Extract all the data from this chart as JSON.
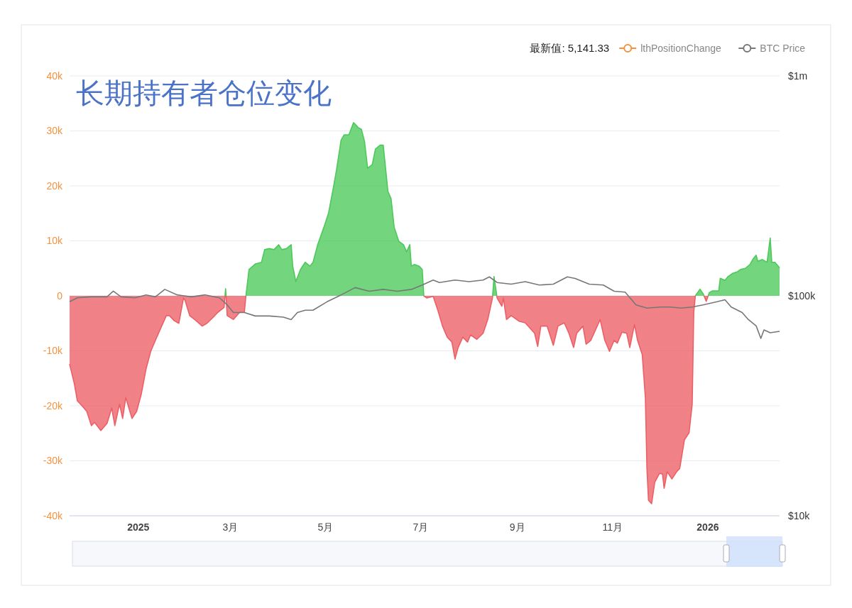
{
  "chart_data": {
    "type": "area",
    "title": "长期持有者仓位变化",
    "annotations": [
      "最新值: 5,141.33"
    ],
    "xlim": [
      "2024-11-18",
      "2026-02-16"
    ],
    "xticks": [
      {
        "value": "2025-01-01",
        "label": "2025"
      },
      {
        "value": "2025-03-01",
        "label": "3月"
      },
      {
        "value": "2025-05-01",
        "label": "5月"
      },
      {
        "value": "2025-07-01",
        "label": "7月"
      },
      {
        "value": "2025-09-01",
        "label": "9月"
      },
      {
        "value": "2025-11-01",
        "label": "11月"
      },
      {
        "value": "2026-01-01",
        "label": "2026"
      }
    ],
    "ylim": [
      -40000,
      40000
    ],
    "yticks": [
      {
        "value": -40000,
        "label": "-40k"
      },
      {
        "value": -30000,
        "label": "-30k"
      },
      {
        "value": -20000,
        "label": "-20k"
      },
      {
        "value": -10000,
        "label": "-10k"
      },
      0,
      {
        "value": 10000,
        "label": "10k"
      },
      {
        "value": 20000,
        "label": "20k"
      },
      {
        "value": 30000,
        "label": "30k"
      },
      {
        "value": 40000,
        "label": "40k"
      }
    ],
    "y2lim": [
      10000,
      1000000
    ],
    "y2ticks": [
      {
        "value": 10000,
        "label": "$10k"
      },
      {
        "value": 100000,
        "label": "$100k"
      },
      {
        "value": 1000000,
        "label": "$1m"
      }
    ],
    "log": "y2",
    "grid": "y",
    "legend": "top right",
    "series": [
      {
        "name": "lthPositionChange",
        "colors": [
          "#ec5f66",
          "#ec5f66",
          "#ec5f66",
          "#ec5f66",
          "#ec5f66",
          "#ec5f66",
          "#ec5f66",
          "#ec5f66",
          "#ec5f66",
          "#ec5f66",
          "#ec5f66",
          "#ec5f66",
          "#ec5f66",
          "#ec5f66",
          "#ec5f66",
          "#ec5f66",
          "#ec5f66",
          "#ec5f66",
          "#ec5f66",
          "#ec5f66",
          "#ec5f66",
          "#ec5f66",
          "#ec5f66",
          "#ec5f66",
          "#ec5f66",
          "#ec5f66",
          "#ec5f66",
          "#ec5f66",
          "#ec5f66",
          "#ec5f66",
          "#ec5f66",
          "#ec5f66",
          "#ec5f66",
          "#ec5f66",
          "#4cc95a",
          "#ec5f66",
          "#ec5f66",
          "#ec5f66",
          "#ec5f66",
          "#4cc95a",
          "#4cc95a",
          "#4cc95a",
          "#4cc95a",
          "#4cc95a",
          "#4cc95a",
          "#4cc95a",
          "#4cc95a",
          "#4cc95a",
          "#4cc95a",
          "#4cc95a",
          "#4cc95a",
          "#4cc95a",
          "#4cc95a",
          "#4cc95a",
          "#4cc95a",
          "#4cc95a",
          "#4cc95a",
          "#4cc95a",
          "#4cc95a",
          "#4cc95a",
          "#4cc95a",
          "#4cc95a",
          "#4cc95a",
          "#4cc95a",
          "#4cc95a",
          "#4cc95a",
          "#4cc95a",
          "#4cc95a",
          "#4cc95a",
          "#4cc95a",
          "#4cc95a",
          "#4cc95a",
          "#4cc95a",
          "#4cc95a",
          "#4cc95a",
          "#4cc95a",
          "#4cc95a",
          "#4cc95a",
          "#4cc95a",
          "#4cc95a",
          "#4cc95a",
          "#4cc95a",
          "#4cc95a",
          "#4cc95a",
          "#4cc95a",
          "#ec5f66",
          "#ec5f66",
          "#ec5f66",
          "#ec5f66",
          "#ec5f66",
          "#ec5f66",
          "#ec5f66",
          "#ec5f66",
          "#ec5f66",
          "#ec5f66",
          "#ec5f66",
          "#ec5f66",
          "#ec5f66",
          "#ec5f66",
          "#ec5f66",
          "#4cc95a",
          "#ec5f66",
          "#ec5f66",
          "#ec5f66",
          "#ec5f66",
          "#ec5f66",
          "#ec5f66",
          "#ec5f66",
          "#ec5f66",
          "#ec5f66",
          "#ec5f66",
          "#ec5f66",
          "#ec5f66",
          "#ec5f66",
          "#ec5f66",
          "#ec5f66",
          "#ec5f66",
          "#ec5f66",
          "#ec5f66",
          "#ec5f66",
          "#ec5f66",
          "#ec5f66",
          "#ec5f66",
          "#ec5f66",
          "#ec5f66",
          "#ec5f66",
          "#ec5f66",
          "#ec5f66",
          "#ec5f66",
          "#ec5f66",
          "#ec5f66",
          "#ec5f66",
          "#ec5f66",
          "#ec5f66",
          "#ec5f66",
          "#ec5f66",
          "#ec5f66",
          "#ec5f66",
          "#ec5f66",
          "#ec5f66",
          "#ec5f66",
          "#ec5f66",
          "#ec5f66",
          "#ec5f66",
          "#ec5f66",
          "#ec5f66",
          "#ec5f66",
          "#ec5f66",
          "#ec5f66",
          "#4cc95a",
          "#4cc95a",
          "#4cc95a",
          "#ec5f66",
          "#4cc95a",
          "#4cc95a",
          "#4cc95a",
          "#4cc95a",
          "#4cc95a",
          "#4cc95a",
          "#4cc95a",
          "#4cc95a",
          "#4cc95a",
          "#4cc95a",
          "#4cc95a",
          "#4cc95a",
          "#4cc95a",
          "#4cc95a",
          "#4cc95a",
          "#4cc95a",
          "#4cc95a",
          "#4cc95a",
          "#4cc95a",
          "#4cc95a"
        ],
        "x": [
          "2024-11-18",
          "2024-11-21",
          "2024-11-23",
          "2024-11-26",
          "2024-11-29",
          "2024-12-02",
          "2024-12-04",
          "2024-12-08",
          "2024-12-12",
          "2024-12-15",
          "2024-12-17",
          "2024-12-20",
          "2024-12-22",
          "2024-12-24",
          "2024-12-28",
          "2024-12-31",
          "2025-01-03",
          "2025-01-06",
          "2025-01-09",
          "2025-01-12",
          "2025-01-16",
          "2025-01-19",
          "2025-01-21",
          "2025-01-24",
          "2025-01-27",
          "2025-01-30",
          "2025-01-31",
          "2025-02-03",
          "2025-02-07",
          "2025-02-11",
          "2025-02-14",
          "2025-02-18",
          "2025-02-21",
          "2025-02-25",
          "2025-02-26",
          "2025-02-27",
          "2025-03-03",
          "2025-03-07",
          "2025-03-10",
          "2025-03-11",
          "2025-03-13",
          "2025-03-17",
          "2025-03-21",
          "2025-03-23",
          "2025-03-26",
          "2025-03-29",
          "2025-04-01",
          "2025-04-03",
          "2025-04-06",
          "2025-04-09",
          "2025-04-10",
          "2025-04-12",
          "2025-04-15",
          "2025-04-18",
          "2025-04-21",
          "2025-04-23",
          "2025-04-26",
          "2025-04-30",
          "2025-05-03",
          "2025-05-06",
          "2025-05-08",
          "2025-05-11",
          "2025-05-13",
          "2025-05-16",
          "2025-05-19",
          "2025-05-22",
          "2025-05-24",
          "2025-05-26",
          "2025-05-28",
          "2025-05-31",
          "2025-06-02",
          "2025-06-05",
          "2025-06-07",
          "2025-06-10",
          "2025-06-12",
          "2025-06-14",
          "2025-06-17",
          "2025-06-20",
          "2025-06-22",
          "2025-06-24",
          "2025-06-25",
          "2025-06-27",
          "2025-06-30",
          "2025-07-02",
          "2025-07-03",
          "2025-07-05",
          "2025-07-09",
          "2025-07-12",
          "2025-07-15",
          "2025-07-18",
          "2025-07-21",
          "2025-07-23",
          "2025-07-25",
          "2025-07-28",
          "2025-07-31",
          "2025-08-02",
          "2025-08-06",
          "2025-08-10",
          "2025-08-13",
          "2025-08-16",
          "2025-08-17",
          "2025-08-19",
          "2025-08-22",
          "2025-08-23",
          "2025-08-25",
          "2025-08-28",
          "2025-09-02",
          "2025-09-06",
          "2025-09-12",
          "2025-09-14",
          "2025-09-16",
          "2025-09-20",
          "2025-09-24",
          "2025-09-27",
          "2025-10-01",
          "2025-10-04",
          "2025-10-07",
          "2025-10-09",
          "2025-10-13",
          "2025-10-15",
          "2025-10-18",
          "2025-10-21",
          "2025-10-24",
          "2025-10-27",
          "2025-10-30",
          "2025-11-02",
          "2025-11-04",
          "2025-11-07",
          "2025-11-10",
          "2025-11-12",
          "2025-11-15",
          "2025-11-17",
          "2025-11-20",
          "2025-11-22",
          "2025-11-23",
          "2025-11-24",
          "2025-11-26",
          "2025-11-28",
          "2025-12-01",
          "2025-12-03",
          "2025-12-04",
          "2025-12-06",
          "2025-12-09",
          "2025-12-12",
          "2025-12-14",
          "2025-12-17",
          "2025-12-20",
          "2025-12-22",
          "2025-12-23",
          "2025-12-24",
          "2025-12-27",
          "2025-12-29",
          "2025-12-31",
          "2026-01-02",
          "2026-01-04",
          "2026-01-08",
          "2026-01-09",
          "2026-01-12",
          "2026-01-14",
          "2026-01-17",
          "2026-01-20",
          "2026-01-22",
          "2026-01-25",
          "2026-01-28",
          "2026-01-30",
          "2026-02-01",
          "2026-02-02",
          "2026-02-05",
          "2026-02-08",
          "2026-02-10",
          "2026-02-11",
          "2026-02-13",
          "2026-02-16"
        ],
        "values": [
          -12400,
          -15900,
          -19100,
          -20000,
          -21000,
          -23600,
          -23000,
          -24500,
          -23200,
          -20400,
          -23600,
          -19700,
          -22300,
          -18500,
          -22300,
          -21000,
          -17800,
          -13300,
          -10100,
          -8100,
          -5500,
          -3600,
          -3600,
          -4500,
          -5000,
          -400,
          -800,
          -3600,
          -4500,
          -5500,
          -5000,
          -3900,
          -3000,
          -2100,
          1300,
          -3600,
          -4300,
          -3000,
          -3000,
          0,
          4800,
          5800,
          6100,
          8400,
          8600,
          8400,
          9300,
          8400,
          8600,
          9300,
          5400,
          2600,
          4800,
          6100,
          5400,
          6100,
          9300,
          12500,
          15100,
          19600,
          22800,
          28300,
          29300,
          29300,
          31500,
          30600,
          30300,
          28100,
          23200,
          23900,
          26700,
          27400,
          27400,
          19000,
          17700,
          12500,
          9900,
          9300,
          8000,
          9300,
          5400,
          5700,
          5400,
          4800,
          0,
          -400,
          -100,
          -2600,
          -5500,
          -7500,
          -8400,
          -11500,
          -9400,
          -7500,
          -8400,
          -7100,
          -7900,
          -6800,
          -4300,
          -400,
          3500,
          -400,
          -1900,
          -400,
          -4300,
          -3600,
          -4600,
          -4900,
          -6800,
          -9200,
          -5500,
          -5500,
          -9000,
          -5500,
          -4900,
          -6800,
          -9400,
          -6800,
          -5500,
          -8800,
          -8100,
          -6200,
          -4300,
          -8100,
          -10100,
          -8100,
          -8600,
          -6600,
          -6800,
          -9400,
          -5200,
          -8100,
          -10700,
          -18500,
          -31400,
          -37200,
          -37800,
          -33900,
          -32300,
          -32400,
          -35000,
          -32000,
          -33300,
          -32000,
          -31400,
          -26200,
          -24900,
          -19700,
          -3000,
          0,
          1200,
          400,
          -1000,
          600,
          900,
          900,
          3200,
          2800,
          3500,
          4100,
          4400,
          4800,
          5000,
          5700,
          6700,
          7400,
          6300,
          6600,
          6100,
          10500,
          6100,
          6100,
          5100
        ]
      },
      {
        "type": "line",
        "name": "BTC Price",
        "color": "#777777",
        "axis": "y2",
        "x": [
          "2024-11-18",
          "2024-11-23",
          "2024-12-02",
          "2024-12-12",
          "2024-12-16",
          "2024-12-21",
          "2024-12-30",
          "2025-01-06",
          "2025-01-12",
          "2025-01-18",
          "2025-01-26",
          "2025-02-04",
          "2025-02-13",
          "2025-02-22",
          "2025-02-27",
          "2025-03-03",
          "2025-03-10",
          "2025-03-17",
          "2025-03-26",
          "2025-04-04",
          "2025-04-09",
          "2025-04-13",
          "2025-04-18",
          "2025-04-23",
          "2025-05-02",
          "2025-05-11",
          "2025-05-20",
          "2025-05-29",
          "2025-06-07",
          "2025-06-16",
          "2025-06-25",
          "2025-07-02",
          "2025-07-09",
          "2025-07-13",
          "2025-07-23",
          "2025-08-01",
          "2025-08-10",
          "2025-08-14",
          "2025-08-19",
          "2025-08-28",
          "2025-09-06",
          "2025-09-15",
          "2025-09-24",
          "2025-10-03",
          "2025-10-08",
          "2025-10-17",
          "2025-10-26",
          "2025-11-02",
          "2025-11-09",
          "2025-11-16",
          "2025-11-23",
          "2025-12-02",
          "2025-12-08",
          "2025-12-15",
          "2025-12-22",
          "2025-12-29",
          "2026-01-07",
          "2026-01-12",
          "2026-01-16",
          "2026-01-23",
          "2026-01-27",
          "2026-02-01",
          "2026-02-04",
          "2026-02-06",
          "2026-02-10",
          "2026-02-16"
        ],
        "values": [
          94000,
          98000,
          99000,
          99000,
          105000,
          99000,
          98000,
          101000,
          99000,
          107000,
          101000,
          99000,
          101000,
          98000,
          91000,
          84000,
          84000,
          81000,
          81000,
          80000,
          78000,
          84000,
          86000,
          86000,
          94000,
          101000,
          109000,
          105000,
          107000,
          105000,
          107000,
          112000,
          118000,
          115000,
          118000,
          116000,
          118000,
          122000,
          115000,
          113000,
          116000,
          112000,
          113000,
          122000,
          120000,
          113000,
          112000,
          105000,
          104000,
          91000,
          88000,
          89000,
          89000,
          88000,
          89000,
          91000,
          94000,
          96000,
          89000,
          84000,
          78000,
          73000,
          64000,
          70000,
          68000,
          69000
        ]
      }
    ]
  }
}
